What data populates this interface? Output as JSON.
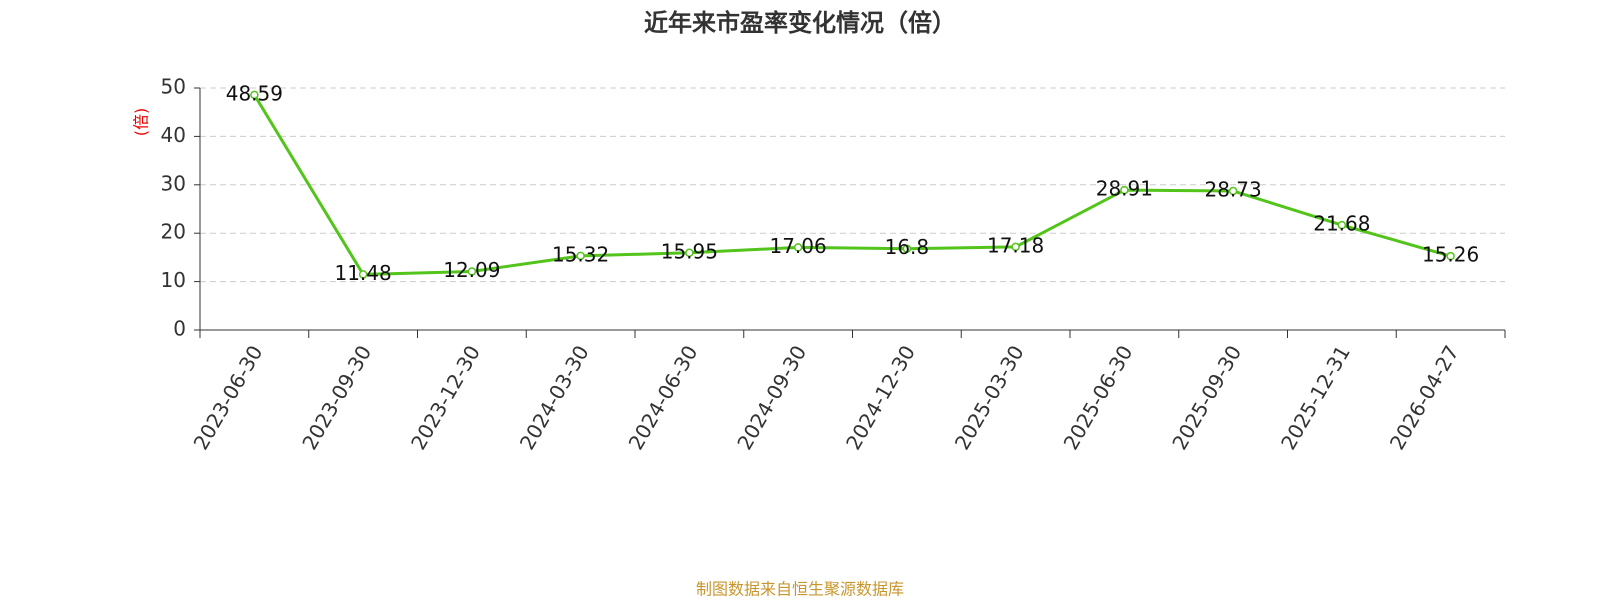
{
  "chart_data": {
    "type": "line",
    "title": "近年来市盈率变化情况（倍）",
    "y_label": "(倍)",
    "categories": [
      "2023-06-30",
      "2023-09-30",
      "2023-12-30",
      "2024-03-30",
      "2024-06-30",
      "2024-09-30",
      "2024-12-30",
      "2025-03-30",
      "2025-06-30",
      "2025-09-30",
      "2025-12-31",
      "2026-04-27"
    ],
    "values": [
      48.59,
      11.48,
      12.09,
      15.32,
      15.95,
      17.06,
      16.8,
      17.18,
      28.91,
      28.73,
      21.68,
      15.26
    ],
    "color": "#52c41a",
    "ylim": [
      0,
      50
    ],
    "yticks": [
      0,
      10,
      20,
      30,
      40,
      50
    ],
    "grid": true,
    "source": "制图数据来自恒生聚源数据库"
  }
}
